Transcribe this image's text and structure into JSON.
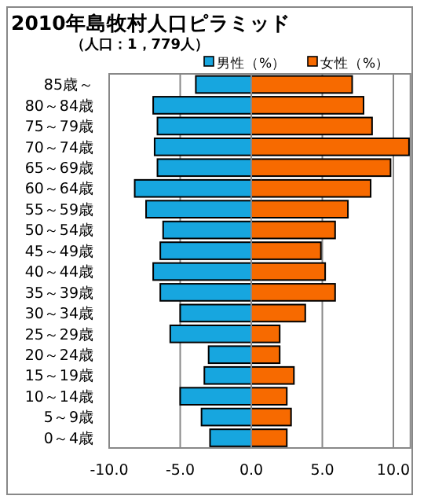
{
  "chart_data": {
    "type": "bar",
    "orientation": "horizontal",
    "stacked": true,
    "title": "2010年島牧村人口ピラミッド",
    "subtitle": "（人口：1，779人）",
    "categories": [
      "85歳～",
      "80～84歳",
      "75～79歳",
      "70～74歳",
      "65～69歳",
      "60～64歳",
      "55～59歳",
      "50～54歳",
      "45～49歳",
      "40～44歳",
      "35～39歳",
      "30～34歳",
      "25～29歳",
      "20～24歳",
      "15～19歳",
      "10～14歳",
      "5～9歳",
      "0～4歳"
    ],
    "series": [
      {
        "name": "男性（%）",
        "color": "#17a6df",
        "values": [
          -3.9,
          -6.9,
          -6.6,
          -6.8,
          -6.6,
          -8.2,
          -7.4,
          -6.2,
          -6.4,
          -6.9,
          -6.4,
          -5.0,
          -5.7,
          -3.0,
          -3.3,
          -5.0,
          -3.5,
          -2.9
        ]
      },
      {
        "name": "女性（%）",
        "color": "#f76a00",
        "values": [
          7.1,
          7.9,
          8.5,
          11.1,
          9.8,
          8.4,
          6.8,
          5.9,
          4.9,
          5.2,
          5.9,
          3.8,
          2.0,
          2.0,
          3.0,
          2.5,
          2.8,
          2.5
        ]
      }
    ],
    "xlim": [
      -10,
      11.2
    ],
    "xticks": [
      {
        "value": -10,
        "label": "-10.0"
      },
      {
        "value": -5,
        "label": "-5.0"
      },
      {
        "value": 0,
        "label": "0.0"
      },
      {
        "value": 5,
        "label": "5.0"
      },
      {
        "value": 10,
        "label": "10.0"
      }
    ],
    "grid": "x",
    "legend": "top right"
  }
}
